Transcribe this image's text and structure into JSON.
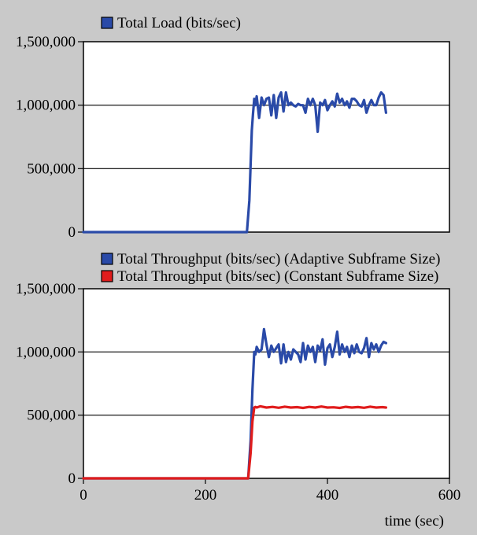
{
  "chart_data": [
    {
      "type": "line",
      "legend_placement": "top-left",
      "grid": "horizontal",
      "ylim": [
        0,
        1500000
      ],
      "yticks": [
        "0",
        "500,000",
        "1,000,000",
        "1,500,000"
      ],
      "xlim": [
        0,
        600
      ],
      "series": [
        {
          "name": "Total Load (bits/sec)",
          "color": "#2a4aa8",
          "x": [
            0,
            100,
            200,
            268,
            272,
            276,
            278,
            280,
            282,
            284,
            288,
            292,
            296,
            300,
            304,
            308,
            312,
            316,
            320,
            324,
            328,
            332,
            336,
            340,
            344,
            348,
            352,
            356,
            360,
            364,
            368,
            372,
            376,
            380,
            384,
            388,
            392,
            396,
            400,
            404,
            408,
            412,
            416,
            420,
            424,
            428,
            432,
            436,
            440,
            444,
            448,
            452,
            456,
            460,
            464,
            468,
            472,
            476,
            480,
            484,
            488,
            492,
            496
          ],
          "y": [
            0,
            0,
            0,
            0,
            250000,
            800000,
            930000,
            1050000,
            1000000,
            1070000,
            900000,
            1060000,
            1000000,
            1050000,
            1060000,
            920000,
            1080000,
            900000,
            1060000,
            1100000,
            950000,
            1100000,
            1000000,
            1020000,
            1000000,
            990000,
            1010000,
            1000000,
            1000000,
            940000,
            1050000,
            1000000,
            1050000,
            1000000,
            790000,
            1020000,
            1000000,
            1040000,
            960000,
            1000000,
            1030000,
            990000,
            1090000,
            1020000,
            1050000,
            1000000,
            1030000,
            980000,
            1050000,
            1050000,
            1030000,
            1000000,
            990000,
            1040000,
            940000,
            1000000,
            1040000,
            1000000,
            1000000,
            1060000,
            1100000,
            1080000,
            940000
          ]
        }
      ]
    },
    {
      "type": "line",
      "legend_placement": "top-left",
      "grid": "horizontal",
      "ylim": [
        0,
        1500000
      ],
      "yticks": [
        "0",
        "500,000",
        "1,000,000",
        "1,500,000"
      ],
      "xlim": [
        0,
        600
      ],
      "xticks": [
        "0",
        "200",
        "400",
        "600"
      ],
      "xlabel": "time (sec)",
      "series": [
        {
          "name": "Total Throughput (bits/sec) (Adaptive Subframe Size)",
          "color": "#2a4aa8",
          "x": [
            0,
            100,
            200,
            270,
            274,
            277,
            280,
            282,
            284,
            288,
            292,
            296,
            300,
            304,
            308,
            312,
            316,
            320,
            324,
            328,
            332,
            336,
            340,
            344,
            348,
            352,
            356,
            360,
            364,
            368,
            372,
            376,
            380,
            384,
            388,
            392,
            396,
            400,
            404,
            408,
            412,
            416,
            420,
            424,
            428,
            432,
            436,
            440,
            444,
            448,
            452,
            456,
            460,
            464,
            468,
            472,
            476,
            480,
            484,
            488,
            492,
            496
          ],
          "y": [
            0,
            0,
            0,
            0,
            300000,
            700000,
            1000000,
            980000,
            1040000,
            1000000,
            1020000,
            1180000,
            1060000,
            960000,
            1050000,
            1000000,
            1030000,
            1060000,
            910000,
            1060000,
            920000,
            1000000,
            940000,
            1020000,
            1000000,
            980000,
            920000,
            1070000,
            940000,
            1050000,
            1000000,
            1040000,
            920000,
            1050000,
            1010000,
            1100000,
            900000,
            1030000,
            1060000,
            960000,
            1040000,
            1160000,
            980000,
            1060000,
            1000000,
            1040000,
            960000,
            1050000,
            990000,
            1060000,
            1000000,
            990000,
            1030000,
            1110000,
            960000,
            1070000,
            1020000,
            1060000,
            1000000,
            1050000,
            1080000,
            1070000
          ]
        },
        {
          "name": "Total Throughput (bits/sec) (Constant Subframe Size)",
          "color": "#e01c1c",
          "x": [
            0,
            100,
            200,
            270,
            274,
            277,
            280,
            282,
            284,
            290,
            300,
            310,
            320,
            330,
            340,
            350,
            360,
            370,
            380,
            390,
            400,
            410,
            420,
            430,
            440,
            450,
            460,
            470,
            480,
            490,
            496
          ],
          "y": [
            0,
            0,
            0,
            0,
            200000,
            450000,
            560000,
            565000,
            560000,
            570000,
            560000,
            565000,
            558000,
            567000,
            560000,
            563000,
            557000,
            565000,
            560000,
            568000,
            560000,
            562000,
            557000,
            566000,
            560000,
            564000,
            558000,
            567000,
            560000,
            563000,
            560000
          ]
        }
      ]
    }
  ]
}
